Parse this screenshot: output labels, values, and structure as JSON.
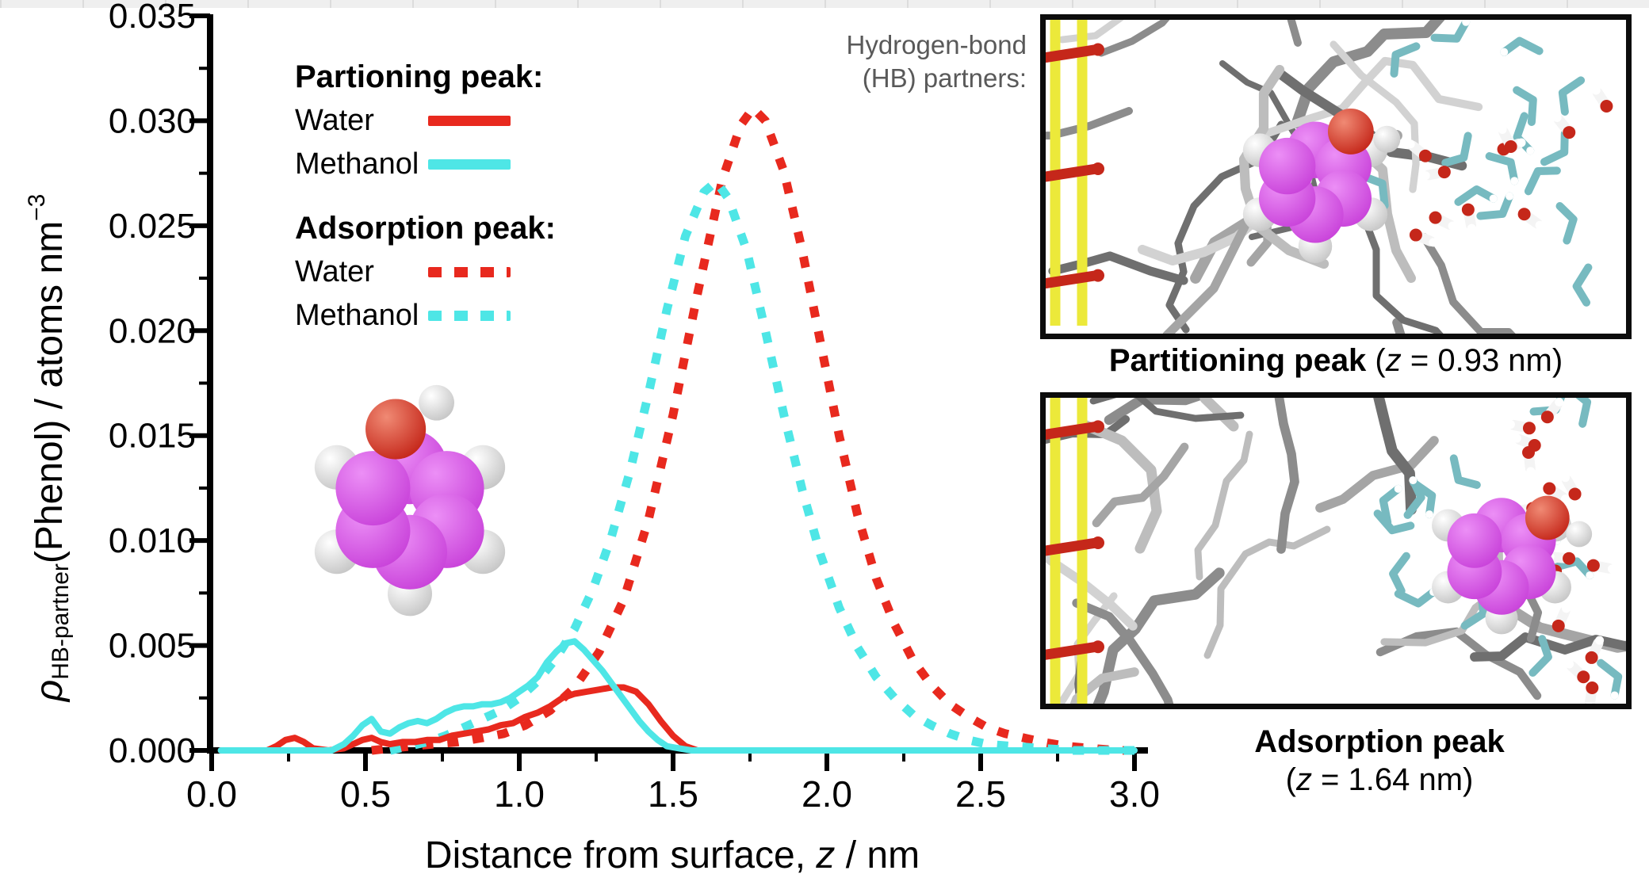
{
  "colors": {
    "red": "#e8291e",
    "cyan": "#4ee6e6",
    "axis": "#000000",
    "annotation_gray": "#595959",
    "phenol_magenta": "#c943da",
    "oxygen_red": "#c5271a",
    "silica_yellow": "#ece93a",
    "methanol_teal": "#77bac0",
    "strip_gray": "#efefef"
  },
  "chart_data": {
    "type": "line",
    "title": "",
    "xlabel": "Distance from surface, z / nm",
    "xlabel_parts": {
      "pre": "Distance from surface, ",
      "z": "z",
      "post": " / nm"
    },
    "ylabel": "ρ HB-partner (Phenol) / atoms nm −3",
    "ylabel_parts": {
      "rho": "ρ",
      "sub": "HB-partner",
      "mid": "(Phenol) / atoms nm",
      "sup": "−3"
    },
    "xlim": [
      0,
      3.0
    ],
    "ylim": [
      0,
      0.035
    ],
    "grid": false,
    "legend_position": "upper-left",
    "xticks": {
      "values": [
        0,
        0.5,
        1.0,
        1.5,
        2.0,
        2.5,
        3.0
      ],
      "labels": [
        "0.0",
        "0.5",
        "1.0",
        "1.5",
        "2.0",
        "2.5",
        "3.0"
      ],
      "minor_step": 0.25
    },
    "yticks": {
      "values": [
        0,
        0.005,
        0.01,
        0.015,
        0.02,
        0.025,
        0.03,
        0.035
      ],
      "labels": [
        "0.000",
        "0.005",
        "0.010",
        "0.015",
        "0.020",
        "0.025",
        "0.030",
        "0.035"
      ],
      "minor_step": 0.0025
    },
    "legend": {
      "group1_title": "Partioning peak:",
      "group2_title": "Adsorption peak:",
      "water": "Water",
      "methanol": "Methanol"
    },
    "annotation": {
      "line1": "Hydrogen-bond",
      "line2": "(HB) partners:"
    },
    "series": [
      {
        "name": "Partitioning peak – Water",
        "style": "solid",
        "color": "#e8291e",
        "points": [
          [
            0.03,
            0
          ],
          [
            0.18,
            0
          ],
          [
            0.21,
            0.0002
          ],
          [
            0.24,
            0.0005
          ],
          [
            0.27,
            0.0006
          ],
          [
            0.3,
            0.0004
          ],
          [
            0.33,
            0.0001
          ],
          [
            0.38,
            0
          ],
          [
            0.43,
            0.0001
          ],
          [
            0.46,
            0.0003
          ],
          [
            0.49,
            0.0005
          ],
          [
            0.52,
            0.0006
          ],
          [
            0.55,
            0.0004
          ],
          [
            0.58,
            0.0003
          ],
          [
            0.62,
            0.0004
          ],
          [
            0.66,
            0.0004
          ],
          [
            0.7,
            0.0005
          ],
          [
            0.74,
            0.0005
          ],
          [
            0.78,
            0.0007
          ],
          [
            0.82,
            0.0008
          ],
          [
            0.86,
            0.0009
          ],
          [
            0.9,
            0.001
          ],
          [
            0.94,
            0.0012
          ],
          [
            0.98,
            0.0013
          ],
          [
            1.02,
            0.0016
          ],
          [
            1.06,
            0.0018
          ],
          [
            1.1,
            0.0021
          ],
          [
            1.14,
            0.0025
          ],
          [
            1.18,
            0.0027
          ],
          [
            1.22,
            0.0028
          ],
          [
            1.26,
            0.0029
          ],
          [
            1.3,
            0.003
          ],
          [
            1.34,
            0.003
          ],
          [
            1.38,
            0.0028
          ],
          [
            1.42,
            0.0022
          ],
          [
            1.46,
            0.0014
          ],
          [
            1.5,
            0.0007
          ],
          [
            1.54,
            0.0002
          ],
          [
            1.58,
            0
          ],
          [
            3,
            0
          ]
        ]
      },
      {
        "name": "Partitioning peak – Methanol",
        "style": "solid",
        "color": "#4ee6e6",
        "points": [
          [
            0.03,
            0
          ],
          [
            0.39,
            0
          ],
          [
            0.43,
            0.0003
          ],
          [
            0.46,
            0.0007
          ],
          [
            0.49,
            0.0012
          ],
          [
            0.52,
            0.0015
          ],
          [
            0.55,
            0.0009
          ],
          [
            0.58,
            0.0008
          ],
          [
            0.61,
            0.0011
          ],
          [
            0.64,
            0.0013
          ],
          [
            0.67,
            0.0014
          ],
          [
            0.7,
            0.0013
          ],
          [
            0.73,
            0.0015
          ],
          [
            0.76,
            0.0018
          ],
          [
            0.79,
            0.002
          ],
          [
            0.82,
            0.0021
          ],
          [
            0.85,
            0.0021
          ],
          [
            0.88,
            0.0022
          ],
          [
            0.91,
            0.0022
          ],
          [
            0.94,
            0.0023
          ],
          [
            0.97,
            0.0025
          ],
          [
            1,
            0.0028
          ],
          [
            1.03,
            0.0031
          ],
          [
            1.06,
            0.0035
          ],
          [
            1.09,
            0.0042
          ],
          [
            1.12,
            0.0047
          ],
          [
            1.15,
            0.0051
          ],
          [
            1.18,
            0.0052
          ],
          [
            1.21,
            0.0048
          ],
          [
            1.24,
            0.0043
          ],
          [
            1.27,
            0.0038
          ],
          [
            1.3,
            0.0032
          ],
          [
            1.33,
            0.0026
          ],
          [
            1.36,
            0.002
          ],
          [
            1.39,
            0.0014
          ],
          [
            1.42,
            0.0009
          ],
          [
            1.45,
            0.0005
          ],
          [
            1.48,
            0.0002
          ],
          [
            1.52,
            0.0001
          ],
          [
            1.56,
            0
          ],
          [
            3,
            0
          ]
        ]
      },
      {
        "name": "Adsorption peak – Water",
        "style": "dashed",
        "color": "#e8291e",
        "points": [
          [
            0.52,
            0
          ],
          [
            0.58,
            0.0001
          ],
          [
            0.65,
            0.0002
          ],
          [
            0.72,
            0.0003
          ],
          [
            0.8,
            0.0004
          ],
          [
            0.88,
            0.0006
          ],
          [
            0.95,
            0.0008
          ],
          [
            1.02,
            0.0012
          ],
          [
            1.1,
            0.0019
          ],
          [
            1.18,
            0.003
          ],
          [
            1.26,
            0.0047
          ],
          [
            1.34,
            0.0072
          ],
          [
            1.42,
            0.011
          ],
          [
            1.5,
            0.016
          ],
          [
            1.58,
            0.0218
          ],
          [
            1.66,
            0.0272
          ],
          [
            1.72,
            0.0298
          ],
          [
            1.76,
            0.0306
          ],
          [
            1.8,
            0.03
          ],
          [
            1.86,
            0.0276
          ],
          [
            1.92,
            0.0238
          ],
          [
            1.98,
            0.0194
          ],
          [
            2.04,
            0.015
          ],
          [
            2.1,
            0.0112
          ],
          [
            2.16,
            0.0082
          ],
          [
            2.22,
            0.006
          ],
          [
            2.28,
            0.0043
          ],
          [
            2.34,
            0.0031
          ],
          [
            2.4,
            0.0022
          ],
          [
            2.46,
            0.0016
          ],
          [
            2.52,
            0.0011
          ],
          [
            2.58,
            0.0008
          ],
          [
            2.64,
            0.0006
          ],
          [
            2.7,
            0.0004
          ],
          [
            2.78,
            0.0002
          ],
          [
            2.86,
            0.0001
          ],
          [
            2.95,
            0
          ],
          [
            3,
            0
          ]
        ]
      },
      {
        "name": "Adsorption peak – Methanol",
        "style": "dashed",
        "color": "#4ee6e6",
        "points": [
          [
            0.58,
            0
          ],
          [
            0.64,
            0.0002
          ],
          [
            0.7,
            0.0004
          ],
          [
            0.76,
            0.0007
          ],
          [
            0.82,
            0.0011
          ],
          [
            0.88,
            0.0015
          ],
          [
            0.94,
            0.0019
          ],
          [
            1,
            0.0025
          ],
          [
            1.06,
            0.0033
          ],
          [
            1.12,
            0.0044
          ],
          [
            1.18,
            0.0058
          ],
          [
            1.24,
            0.0077
          ],
          [
            1.3,
            0.0102
          ],
          [
            1.36,
            0.0133
          ],
          [
            1.42,
            0.017
          ],
          [
            1.48,
            0.021
          ],
          [
            1.54,
            0.0245
          ],
          [
            1.6,
            0.0266
          ],
          [
            1.64,
            0.0271
          ],
          [
            1.68,
            0.0263
          ],
          [
            1.74,
            0.0238
          ],
          [
            1.8,
            0.02
          ],
          [
            1.86,
            0.016
          ],
          [
            1.92,
            0.0124
          ],
          [
            1.98,
            0.0093
          ],
          [
            2.04,
            0.0068
          ],
          [
            2.1,
            0.0049
          ],
          [
            2.16,
            0.0035
          ],
          [
            2.22,
            0.0025
          ],
          [
            2.28,
            0.0017
          ],
          [
            2.34,
            0.0012
          ],
          [
            2.4,
            0.0008
          ],
          [
            2.46,
            0.0005
          ],
          [
            2.52,
            0.0003
          ],
          [
            2.6,
            0.0002
          ],
          [
            2.7,
            0.0001
          ],
          [
            2.8,
            0
          ],
          [
            3,
            0
          ]
        ]
      }
    ]
  },
  "insets": {
    "partitioning_caption": {
      "bold": "Partitioning peak",
      "open": " (",
      "z": "z",
      "rest": " = 0.93 nm)"
    },
    "adsorption_caption": {
      "bold": "Adsorption peak",
      "open": "(",
      "z": "z",
      "rest": " = 1.64 nm)"
    }
  }
}
